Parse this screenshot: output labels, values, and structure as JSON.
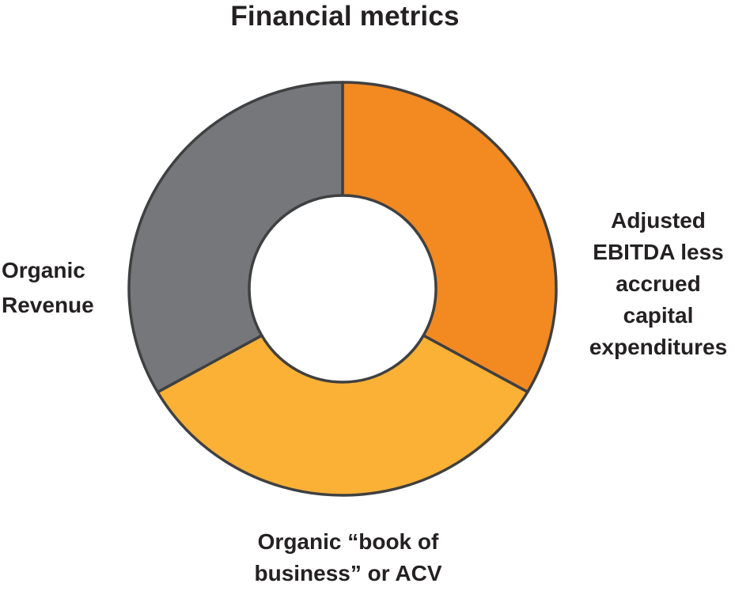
{
  "chart_data": {
    "type": "pie",
    "subtype": "donut",
    "title": "Financial metrics",
    "legend": false,
    "start_angle_deg": 0,
    "direction": "clockwise",
    "segments": [
      {
        "label": "Adjusted EBITDA less accrued capital expenditures",
        "label_lines": [
          "Adjusted",
          "EBITDA less",
          "accrued",
          "capital",
          "expenditures"
        ],
        "label_position": "right",
        "value": 33.33,
        "color": "#F28A21"
      },
      {
        "label": "Organic “book of business” or ACV",
        "label_lines": [
          "Organic “book of",
          "business” or ACV"
        ],
        "label_position": "bottom",
        "value": 33.33,
        "color": "#FAB135"
      },
      {
        "label": "Organic Revenue",
        "label_lines": [
          "Organic",
          "Revenue"
        ],
        "label_position": "left",
        "value": 33.34,
        "color": "#76777B"
      }
    ],
    "colors": {
      "outline": "#3F4042",
      "text": "#242122",
      "background": "#FFFFFF",
      "hole": "#FFFFFF"
    }
  }
}
